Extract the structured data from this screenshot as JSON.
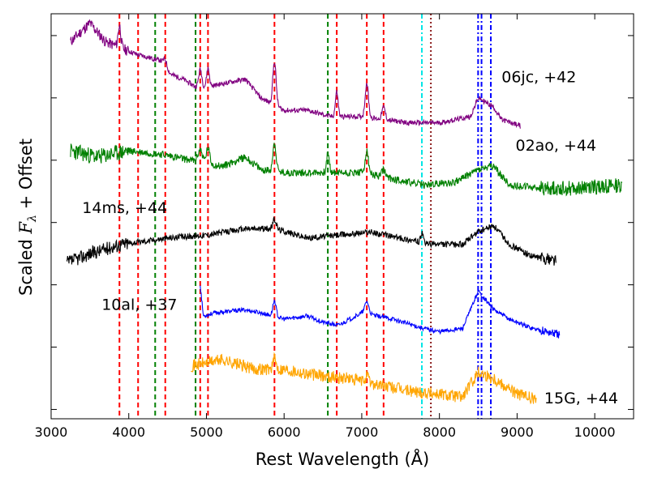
{
  "chart_data": {
    "type": "line",
    "title": "",
    "xlabel": "Rest Wavelength (Å)",
    "ylabel_prefix": "Scaled ",
    "ylabel_symbol": "F",
    "ylabel_subscript": "λ",
    "ylabel_suffix": " + Offset",
    "xlim": [
      3000,
      10500
    ],
    "ylim": [
      0,
      6.5
    ],
    "xticks": [
      3000,
      4000,
      5000,
      6000,
      7000,
      8000,
      9000,
      10000
    ],
    "xtick_labels": [
      "3000",
      "4000",
      "5000",
      "6000",
      "7000",
      "8000",
      "9000",
      "10000"
    ],
    "yticks": [
      0.15,
      1.15,
      2.15,
      3.15,
      4.15,
      5.15,
      6.15
    ],
    "grid": false,
    "reference_lines": [
      {
        "x": 3880,
        "color": "#ff0000",
        "style": "dashed"
      },
      {
        "x": 4120,
        "color": "#ff0000",
        "style": "dashed"
      },
      {
        "x": 4340,
        "color": "#008000",
        "style": "dashed"
      },
      {
        "x": 4470,
        "color": "#ff0000",
        "style": "dashed"
      },
      {
        "x": 4860,
        "color": "#008000",
        "style": "dashed"
      },
      {
        "x": 4920,
        "color": "#ff0000",
        "style": "dashed"
      },
      {
        "x": 5020,
        "color": "#ff0000",
        "style": "dashed"
      },
      {
        "x": 5876,
        "color": "#ff0000",
        "style": "dashed"
      },
      {
        "x": 6563,
        "color": "#008000",
        "style": "dashed"
      },
      {
        "x": 6678,
        "color": "#ff0000",
        "style": "dashed"
      },
      {
        "x": 7065,
        "color": "#ff0000",
        "style": "dashed"
      },
      {
        "x": 7281,
        "color": "#ff0000",
        "style": "dashed"
      },
      {
        "x": 7774,
        "color": "#00e5e5",
        "style": "dashdot"
      },
      {
        "x": 7890,
        "color": "#8b1a1a",
        "style": "dotted"
      },
      {
        "x": 8498,
        "color": "#0000ff",
        "style": "dashdot"
      },
      {
        "x": 8542,
        "color": "#0000ff",
        "style": "dashdot"
      },
      {
        "x": 8662,
        "color": "#0000ff",
        "style": "dashdot"
      }
    ],
    "series": [
      {
        "name": "06jc, +42",
        "color": "#800080",
        "label_x": 8800,
        "label_y": 5.4,
        "xmin": 3250,
        "xmax": 9050,
        "offset": 5.0,
        "noise": 0.04,
        "seed": 11,
        "points": [
          [
            3250,
            6.05
          ],
          [
            3500,
            6.35
          ],
          [
            3700,
            6.05
          ],
          [
            3900,
            5.95
          ],
          [
            4100,
            5.85
          ],
          [
            4400,
            5.75
          ],
          [
            4500,
            5.55
          ],
          [
            4700,
            5.45
          ],
          [
            4900,
            5.3
          ],
          [
            5100,
            5.35
          ],
          [
            5300,
            5.4
          ],
          [
            5500,
            5.45
          ],
          [
            5700,
            5.15
          ],
          [
            6000,
            4.95
          ],
          [
            6300,
            4.95
          ],
          [
            6600,
            4.85
          ],
          [
            7000,
            4.85
          ],
          [
            7300,
            4.8
          ],
          [
            7600,
            4.75
          ],
          [
            8000,
            4.75
          ],
          [
            8400,
            4.85
          ],
          [
            8500,
            5.15
          ],
          [
            8700,
            5.0
          ],
          [
            8800,
            4.8
          ],
          [
            9050,
            4.7
          ]
        ],
        "peaks": [
          [
            3880,
            0.35,
            25
          ],
          [
            4470,
            0.15,
            40
          ],
          [
            4920,
            0.3,
            30
          ],
          [
            5020,
            0.3,
            25
          ],
          [
            5876,
            0.7,
            30
          ],
          [
            6678,
            0.4,
            25
          ],
          [
            7065,
            0.55,
            30
          ],
          [
            7281,
            0.2,
            30
          ]
        ]
      },
      {
        "name": "02ao, +44",
        "color": "#008000",
        "label_x": 8980,
        "label_y": 4.3,
        "xmin": 3250,
        "xmax": 10350,
        "offset": 3.8,
        "noise": 0.06,
        "seed": 23,
        "points": [
          [
            3250,
            4.3
          ],
          [
            3600,
            4.2
          ],
          [
            4000,
            4.3
          ],
          [
            4400,
            4.25
          ],
          [
            4800,
            4.15
          ],
          [
            5200,
            4.05
          ],
          [
            5500,
            4.2
          ],
          [
            5700,
            4.0
          ],
          [
            6000,
            3.95
          ],
          [
            6300,
            3.95
          ],
          [
            6600,
            3.95
          ],
          [
            7000,
            3.95
          ],
          [
            7400,
            3.85
          ],
          [
            7800,
            3.75
          ],
          [
            8200,
            3.8
          ],
          [
            8500,
            4.0
          ],
          [
            8700,
            4.05
          ],
          [
            8900,
            3.75
          ],
          [
            9300,
            3.7
          ],
          [
            9700,
            3.7
          ],
          [
            10350,
            3.75
          ]
        ],
        "peaks": [
          [
            4920,
            0.2,
            40
          ],
          [
            5020,
            0.25,
            30
          ],
          [
            5876,
            0.45,
            30
          ],
          [
            6563,
            0.3,
            25
          ],
          [
            7065,
            0.35,
            30
          ],
          [
            7281,
            0.12,
            30
          ]
        ]
      },
      {
        "name": "14ms, +44",
        "color": "#000000",
        "label_x": 3400,
        "label_y": 3.3,
        "xmin": 3200,
        "xmax": 9500,
        "offset": 2.5,
        "noise": 0.05,
        "seed": 37,
        "points": [
          [
            3200,
            2.5
          ],
          [
            3500,
            2.65
          ],
          [
            3900,
            2.8
          ],
          [
            4500,
            2.9
          ],
          [
            5000,
            2.95
          ],
          [
            5500,
            3.05
          ],
          [
            5900,
            3.05
          ],
          [
            6300,
            2.9
          ],
          [
            6700,
            2.95
          ],
          [
            7100,
            3.0
          ],
          [
            7500,
            2.9
          ],
          [
            7900,
            2.8
          ],
          [
            8300,
            2.8
          ],
          [
            8500,
            3.0
          ],
          [
            8700,
            3.1
          ],
          [
            8900,
            2.8
          ],
          [
            9200,
            2.6
          ],
          [
            9500,
            2.55
          ]
        ],
        "peaks": [
          [
            5876,
            0.15,
            30
          ],
          [
            7774,
            0.15,
            20
          ]
        ]
      },
      {
        "name": "10al, +37",
        "color": "#0000ff",
        "label_x": 3650,
        "label_y": 1.75,
        "xmin": 4920,
        "xmax": 9550,
        "offset": 1.5,
        "noise": 0.035,
        "seed": 53,
        "points": [
          [
            4920,
            2.15
          ],
          [
            4960,
            1.65
          ],
          [
            5100,
            1.7
          ],
          [
            5500,
            1.75
          ],
          [
            5700,
            1.7
          ],
          [
            6000,
            1.6
          ],
          [
            6300,
            1.65
          ],
          [
            6500,
            1.55
          ],
          [
            6700,
            1.5
          ],
          [
            7000,
            1.7
          ],
          [
            7400,
            1.6
          ],
          [
            7800,
            1.45
          ],
          [
            8000,
            1.4
          ],
          [
            8300,
            1.45
          ],
          [
            8500,
            2.05
          ],
          [
            8700,
            1.75
          ],
          [
            8900,
            1.6
          ],
          [
            9200,
            1.45
          ],
          [
            9550,
            1.35
          ]
        ],
        "peaks": [
          [
            5876,
            0.25,
            30
          ],
          [
            7065,
            0.2,
            35
          ]
        ]
      },
      {
        "name": "15G, +44",
        "color": "#ffa500",
        "label_x": 9350,
        "label_y": 0.25,
        "xmin": 4800,
        "xmax": 9250,
        "offset": 0.4,
        "noise": 0.1,
        "seed": 71,
        "points": [
          [
            4800,
            0.85
          ],
          [
            5200,
            0.95
          ],
          [
            5600,
            0.8
          ],
          [
            6000,
            0.8
          ],
          [
            6400,
            0.7
          ],
          [
            6800,
            0.65
          ],
          [
            7200,
            0.55
          ],
          [
            7600,
            0.45
          ],
          [
            8000,
            0.4
          ],
          [
            8300,
            0.35
          ],
          [
            8500,
            0.75
          ],
          [
            8700,
            0.65
          ],
          [
            9000,
            0.4
          ],
          [
            9250,
            0.3
          ]
        ],
        "peaks": [
          [
            5876,
            0.15,
            30
          ],
          [
            7065,
            0.1,
            30
          ]
        ]
      }
    ]
  }
}
